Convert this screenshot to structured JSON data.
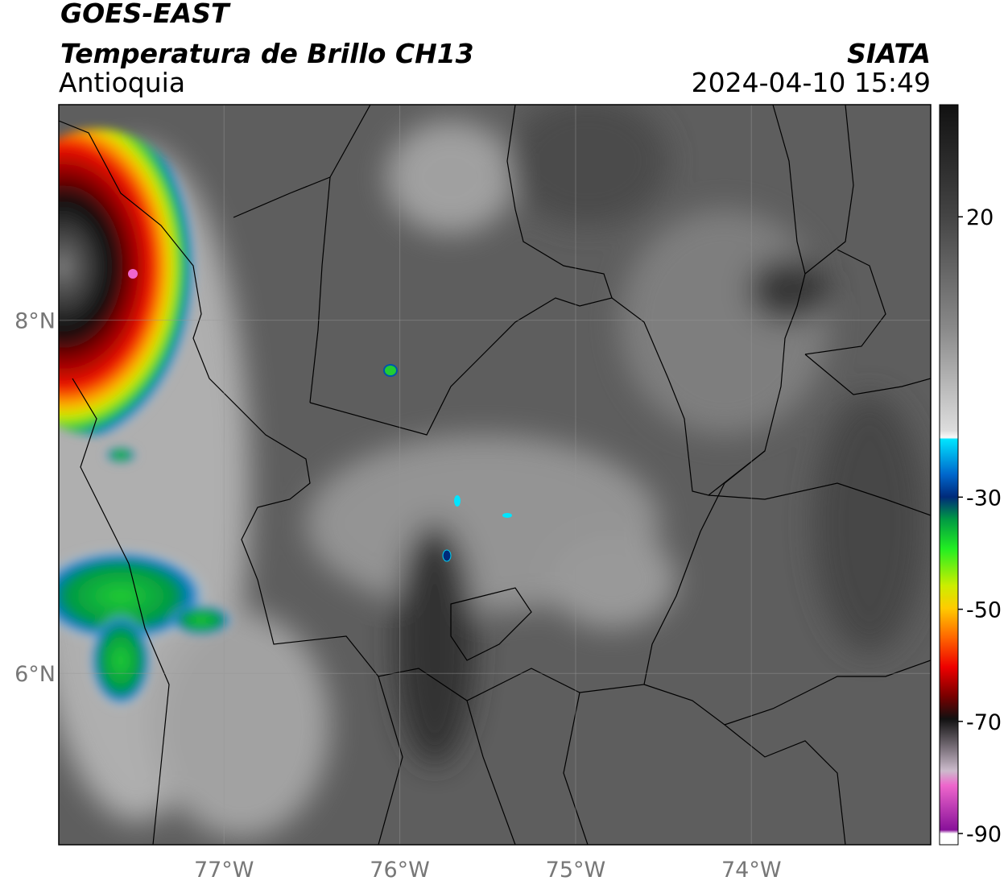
{
  "map": {
    "title": "GOES-EAST",
    "subtitle": "Temperatura de Brillo CH13",
    "region": "Antioquia",
    "source": "SIATA",
    "timestamp": "2024-04-10 15:49",
    "xlim": [
      -77.94,
      -72.98
    ],
    "ylim": [
      5.03,
      9.22
    ],
    "xticks": [
      {
        "value": -77,
        "label": "77°W"
      },
      {
        "value": -76,
        "label": "76°W"
      },
      {
        "value": -75,
        "label": "75°W"
      },
      {
        "value": -74,
        "label": "74°W"
      }
    ],
    "yticks": [
      {
        "value": 8,
        "label": "8°N"
      },
      {
        "value": 6,
        "label": "6°N"
      }
    ],
    "grid": true
  },
  "colorbar": {
    "lim": [
      -92,
      40
    ],
    "ticks": [
      20,
      -30,
      -50,
      -70,
      -90
    ]
  }
}
